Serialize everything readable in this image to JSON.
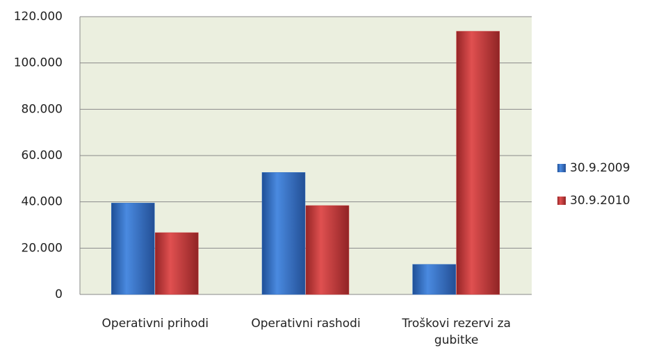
{
  "chart_data": {
    "type": "bar",
    "categories": [
      "Operativni prihodi",
      "Operativni rashodi",
      "Troškovi rezervi za gubitke"
    ],
    "series": [
      {
        "name": "30.9.2009",
        "color": "#2f6fc3",
        "values": [
          39500,
          52700,
          13000
        ]
      },
      {
        "name": "30.9.2010",
        "color": "#c93a3b",
        "values": [
          26700,
          38400,
          113700
        ]
      }
    ],
    "ylim": [
      0,
      120000
    ],
    "yticks": [
      0,
      {
        "value": 20000,
        "label": "20.000"
      },
      {
        "value": 40000,
        "label": "40.000"
      },
      {
        "value": 60000,
        "label": "60.000"
      },
      {
        "value": 80000,
        "label": "80.000"
      },
      {
        "value": 100000,
        "label": "100.000"
      },
      {
        "value": 120000,
        "label": "120.000"
      }
    ],
    "grid": true,
    "legend": "right"
  }
}
